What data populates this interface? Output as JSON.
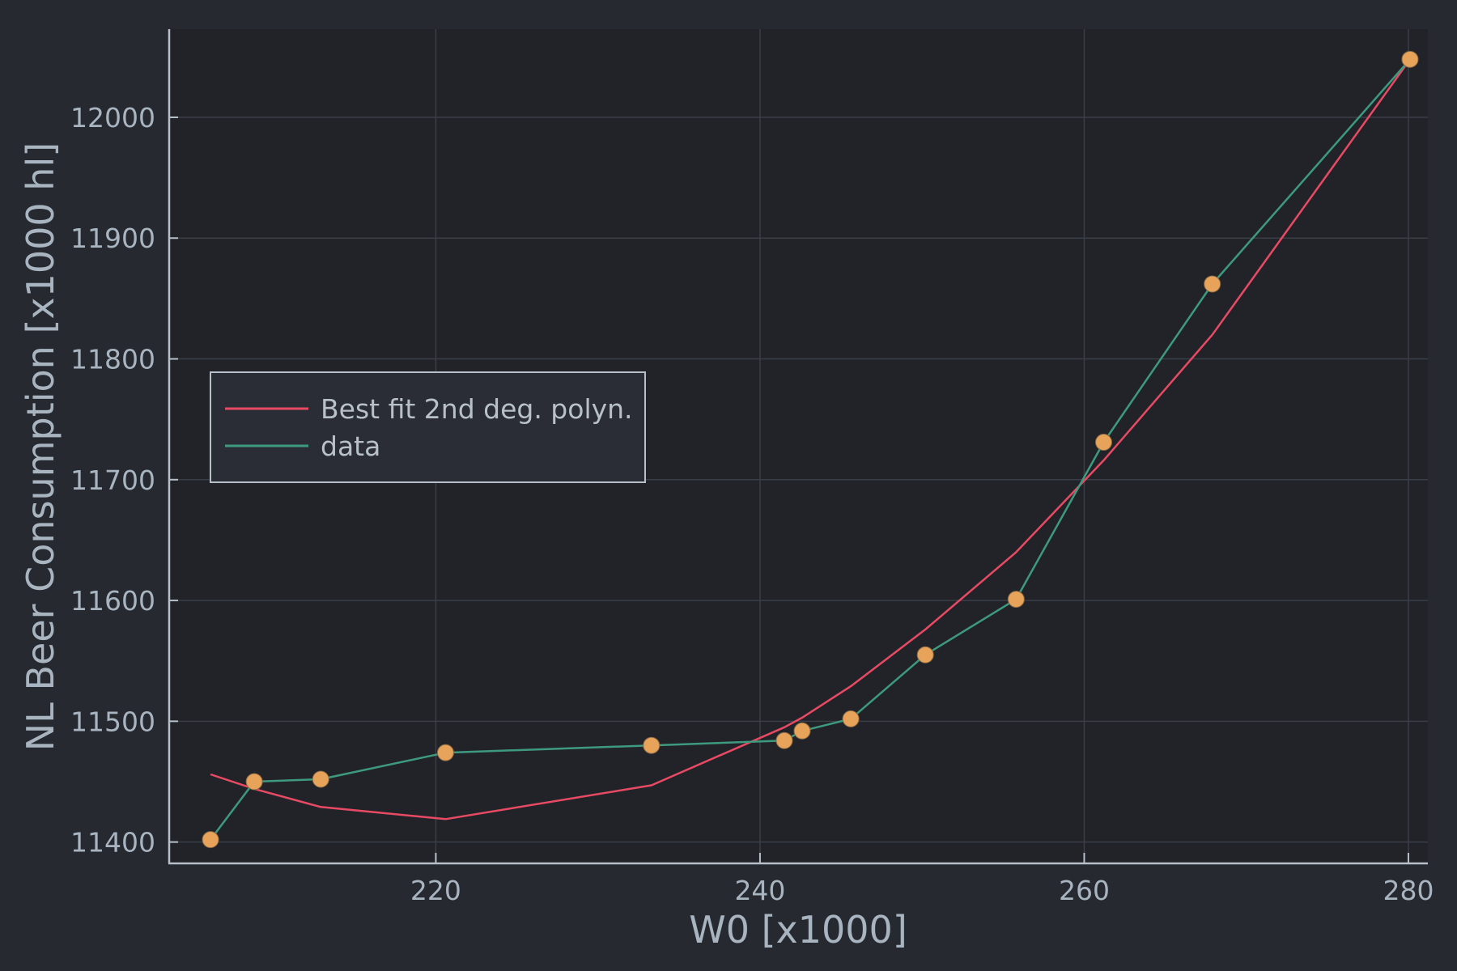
{
  "chart_data": {
    "type": "line",
    "title": "",
    "xlabel": "W0 [x1000]",
    "ylabel": "NL Beer Consumption [x1000 hl]",
    "xlim": [
      203.5,
      281.2
    ],
    "ylim": [
      11383,
      12073
    ],
    "xticks": [
      220,
      240,
      260,
      280
    ],
    "yticks": [
      11400,
      11500,
      11600,
      11700,
      11800,
      11900,
      12000
    ],
    "grid": true,
    "legend_position": "middle-left",
    "series": [
      {
        "name": "Best fit 2nd deg. polyn.",
        "color": "#e84a63",
        "marker": "none",
        "x": [
          206.1,
          208.8,
          212.9,
          220.6,
          233.3,
          241.5,
          242.6,
          245.6,
          250.2,
          255.8,
          261.2,
          267.9,
          280.1
        ],
        "y": [
          11456,
          11444,
          11429,
          11419,
          11447,
          11495,
          11503,
          11529,
          11576,
          11640,
          11716,
          11820,
          12048
        ]
      },
      {
        "name": "data",
        "color": "#3e9a7e",
        "marker": "circle",
        "marker_color": "#e8a35a",
        "x": [
          206.1,
          208.8,
          212.9,
          220.6,
          233.3,
          241.5,
          242.6,
          245.6,
          250.2,
          255.8,
          261.2,
          267.9,
          280.1
        ],
        "y": [
          11402,
          11450,
          11452,
          11474,
          11480,
          11484,
          11492,
          11502,
          11555,
          11601,
          11731,
          11862,
          12048
        ]
      }
    ]
  },
  "colors": {
    "background": "#262930",
    "plot_area": "#212329",
    "grid": "#3a3e47",
    "axis": "#b7c0c8",
    "text": "#a8b4bf",
    "legend_bg": "#2a2d35",
    "legend_border": "#b7c0c8"
  }
}
